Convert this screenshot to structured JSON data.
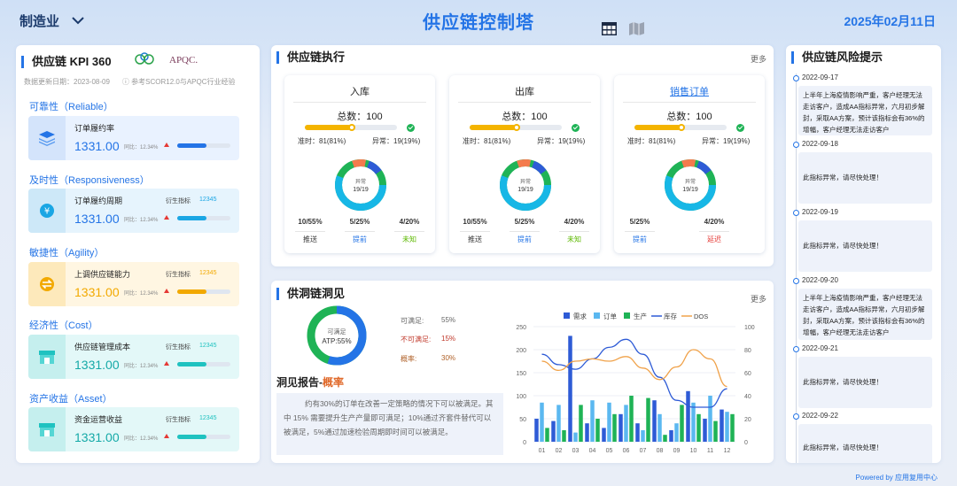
{
  "header": {
    "industry": "制造业",
    "title": "供应链控制塔",
    "date": "2025年02月11日"
  },
  "kpi": {
    "title": "供应链 KPI 360",
    "logo_text": "APQC.",
    "update_date": "数据更新日期：2023-08-09",
    "reference": "参考SCOR12.0与APQC行业经验",
    "categories": [
      {
        "label": "可靠性（Reliable）",
        "name": "订单履约率",
        "value": "1331.00",
        "yoy": "同比：12.34%",
        "derived_label": "",
        "derived_value": "",
        "accent": "#2474e6",
        "bar": 0.55
      },
      {
        "label": "及时性（Responsiveness）",
        "name": "订单履约周期",
        "value": "1331.00",
        "yoy": "同比：12.34%",
        "derived_label": "衍生指标",
        "derived_value": "12345",
        "accent": "#1aa6e4",
        "bar": 0.55
      },
      {
        "label": "敏捷性（Agility）",
        "name": "上调供应链能力",
        "value": "1331.00",
        "yoy": "同比：12.34%",
        "derived_label": "衍生指标",
        "derived_value": "12345",
        "accent": "#f2a900",
        "bar": 0.55
      },
      {
        "label": "经济性（Cost）",
        "name": "供应链管理成本",
        "value": "1331.00",
        "yoy": "同比：12.34%",
        "derived_label": "衍生指标",
        "derived_value": "12345",
        "accent": "#1fc2c0",
        "bar": 0.55
      },
      {
        "label": "资产收益（Asset）",
        "name": "资金运营收益",
        "value": "1331.00",
        "yoy": "同比：12.34%",
        "derived_label": "衍生指标",
        "derived_value": "12345",
        "accent": "#1fc2c0",
        "bar": 0.55
      }
    ]
  },
  "execution": {
    "title": "供应链执行",
    "more": "更多",
    "cards": [
      {
        "name": "入库",
        "total": "总数：100",
        "ontime": "准时：81(81%)",
        "abnormal": "异常：19(19%)",
        "donut_label": "异常",
        "donut_value": "19/19",
        "stats": [
          {
            "v": "10/55%",
            "l": "推送",
            "c": "#333"
          },
          {
            "v": "5/25%",
            "l": "提前",
            "c": "#2474e6"
          },
          {
            "v": "4/20%",
            "l": "未知",
            "c": "#5cb800"
          }
        ]
      },
      {
        "name": "出库",
        "total": "总数：100",
        "ontime": "准时：81(81%)",
        "abnormal": "异常：19(19%)",
        "donut_label": "异常",
        "donut_value": "19/19",
        "stats": [
          {
            "v": "10/55%",
            "l": "推送",
            "c": "#333"
          },
          {
            "v": "5/25%",
            "l": "提前",
            "c": "#2474e6"
          },
          {
            "v": "4/20%",
            "l": "未知",
            "c": "#5cb800"
          }
        ]
      },
      {
        "name": "销售订单",
        "total": "总数：100",
        "ontime": "准时：81(81%)",
        "abnormal": "异常：19(19%)",
        "donut_label": "异常",
        "donut_value": "19/19",
        "stats": [
          {
            "v": "5/25%",
            "l": "提前",
            "c": "#2474e6"
          },
          {
            "v": "4/20%",
            "l": "延迟",
            "c": "#e53935"
          }
        ]
      }
    ]
  },
  "insight": {
    "title": "供洞链洞见",
    "more": "更多",
    "donut_label": "可满足",
    "donut_value": "ATP:55%",
    "legend": [
      {
        "label": "可满足:",
        "value": "55%",
        "color": "#666"
      },
      {
        "label": "不可满足:",
        "value": "15%",
        "color": "#c0392b"
      },
      {
        "label": "概率:",
        "value": "30%",
        "color": "#b0622a"
      }
    ],
    "report_title": "洞见报告-",
    "report_highlight": "概率",
    "report_text": "约有30%的订单在改善一定策略的情况下可以被满足。其中 15% 需要提升生产产量即可满足；10%通过齐套件替代可以被满足，5%通过加速检验周期即时间可以被满足。"
  },
  "chart_data": {
    "type": "bar",
    "categories": [
      "01",
      "02",
      "03",
      "04",
      "05",
      "06",
      "07",
      "08",
      "09",
      "10",
      "11",
      "12"
    ],
    "series": [
      {
        "name": "需求",
        "kind": "bar",
        "color": "#2e5bd6",
        "values": [
          50,
          45,
          230,
          40,
          30,
          60,
          40,
          90,
          25,
          110,
          50,
          70
        ]
      },
      {
        "name": "订单",
        "kind": "bar",
        "color": "#5bb8f0",
        "values": [
          85,
          80,
          20,
          90,
          85,
          80,
          25,
          60,
          40,
          85,
          100,
          65
        ]
      },
      {
        "name": "生产",
        "kind": "bar",
        "color": "#1fb356",
        "values": [
          30,
          25,
          80,
          50,
          60,
          100,
          95,
          15,
          80,
          60,
          45,
          60
        ]
      },
      {
        "name": "库存",
        "kind": "line",
        "axis": "right",
        "color": "#2e5bd6",
        "values": [
          76,
          67,
          63,
          72,
          82,
          89,
          76,
          56,
          36,
          30,
          30,
          46
        ]
      },
      {
        "name": "DOS",
        "kind": "line",
        "axis": "right",
        "color": "#f0a24a",
        "values": [
          70,
          62,
          70,
          72,
          70,
          74,
          64,
          54,
          65,
          80,
          72,
          48
        ]
      }
    ],
    "ylim": [
      0,
      250
    ],
    "y_ticks": [
      "0",
      "50",
      "100",
      "150",
      "200",
      "250"
    ],
    "ylim_right": [
      0,
      100
    ],
    "y2_ticks": [
      "0",
      "20",
      "40",
      "60",
      "80",
      "100"
    ],
    "grid": true,
    "legend_position": "top"
  },
  "risk": {
    "title": "供应链风险提示",
    "items": [
      {
        "date": "2022-09-17",
        "text": "上半年上海疫情影响严重，客户经理无法走访客户，造成AA指标异常，六月初步解封，采取AA方案，预计该指标会有36%的增幅，客户经理无法走访客户"
      },
      {
        "date": "2022-09-18",
        "text": "此指标异常，请尽快处理！"
      },
      {
        "date": "2022-09-19",
        "text": "此指标异常，请尽快处理！"
      },
      {
        "date": "2022-09-20",
        "text": "上半年上海疫情影响严重，客户经理无法走访客户，造成AA指标异常，六月初步解封，采取AA方案，预计该指标会有36%的增幅，客户经理无法走访客户"
      },
      {
        "date": "2022-09-21",
        "text": "此指标异常，请尽快处理！"
      },
      {
        "date": "2022-09-22",
        "text": "此指标异常，请尽快处理！"
      }
    ]
  },
  "footer": "Powered by 应用复用中心"
}
